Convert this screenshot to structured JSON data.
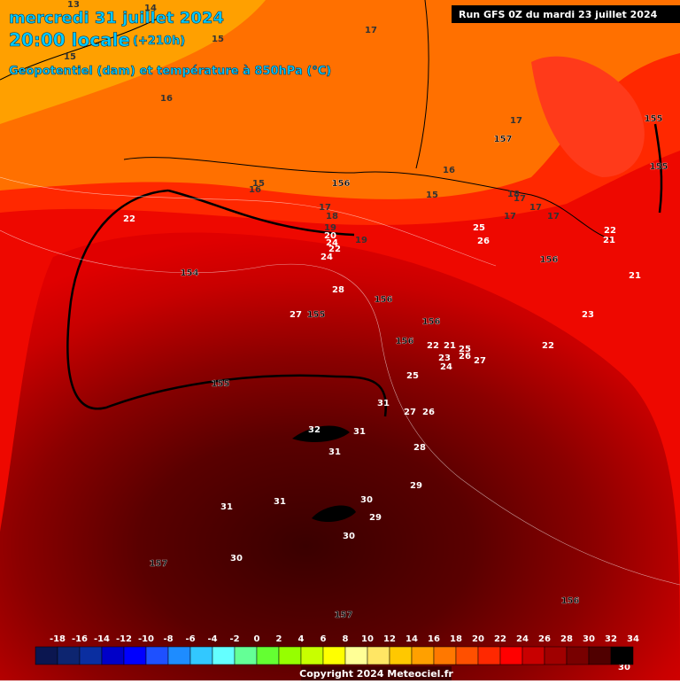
{
  "header": {
    "date": "mercredi 31 juillet 2024",
    "time": "20:00 locale",
    "lead": "(+210h)",
    "field": "Geopotentiel (dam) et température à 850hPa (°C)",
    "run": "Run GFS 0Z du mardi 23 juillet 2024"
  },
  "contour_labels": [
    13,
    14,
    15,
    15,
    16,
    17,
    17,
    157,
    155,
    155,
    16,
    156,
    15,
    16,
    15,
    18,
    17,
    17,
    17,
    17,
    22,
    17,
    18,
    19,
    20,
    24,
    22,
    24,
    19,
    25,
    26,
    22,
    21,
    156,
    154,
    21,
    28,
    27,
    155,
    156,
    156,
    23,
    156,
    22,
    21,
    25,
    26,
    23,
    24,
    27,
    22,
    25,
    155,
    31,
    27,
    26,
    32,
    31,
    31,
    28,
    29,
    30,
    29,
    31,
    31,
    30,
    30,
    157,
    157,
    156,
    30
  ],
  "legend": {
    "labels": [
      -18,
      -16,
      -14,
      -12,
      -10,
      -8,
      -6,
      -4,
      -2,
      0,
      2,
      4,
      6,
      8,
      10,
      12,
      14,
      16,
      18,
      20,
      22,
      24,
      26,
      28,
      30,
      32,
      34
    ],
    "colors": [
      "#0b1650",
      "#0d2570",
      "#0a2ea0",
      "#0000c8",
      "#0000ff",
      "#1e50ff",
      "#1e8cff",
      "#32c8ff",
      "#64ffff",
      "#64ff96",
      "#64ff32",
      "#96ff00",
      "#c8ff00",
      "#ffff00",
      "#ffff96",
      "#ffe664",
      "#ffc800",
      "#ffa000",
      "#ff7800",
      "#ff5000",
      "#ff2800",
      "#ff0000",
      "#c80000",
      "#a00000",
      "#780000",
      "#500000",
      "#000000"
    ]
  },
  "footer": {
    "copyright": "Copyright 2024 Meteociel.fr"
  }
}
